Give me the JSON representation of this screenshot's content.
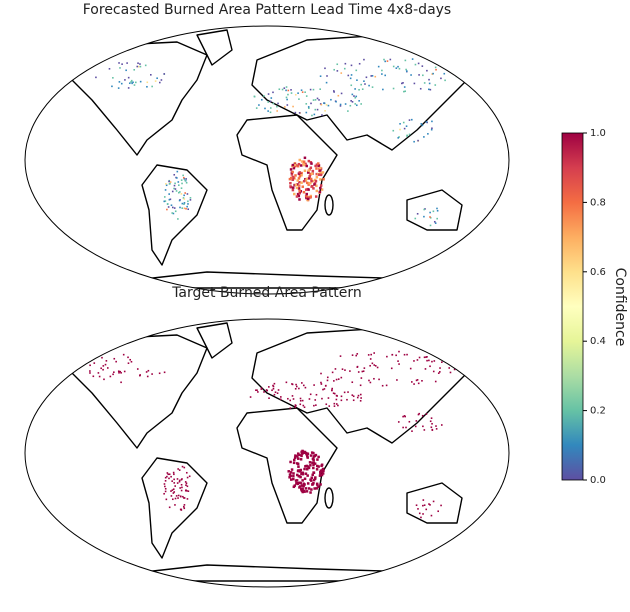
{
  "maps": [
    {
      "title": "Forecasted Burned Area Pattern Lead Time 4x8-days"
    },
    {
      "title": "Target Burned Area Pattern"
    }
  ],
  "colorbar": {
    "label": "Confidence",
    "lim": [
      0,
      1
    ],
    "ticks": [
      {
        "value": 0,
        "label": "0.0"
      },
      0.2,
      0.4,
      0.6,
      0.8,
      {
        "value": 1,
        "label": "1.0"
      }
    ],
    "colors": [
      "#5e4fa2",
      "#3288bd",
      "#66c2a5",
      "#abdda4",
      "#e6f598",
      "#ffffbf",
      "#fee08b",
      "#fdae61",
      "#f46d43",
      "#d53e4f",
      "#9e0142"
    ]
  }
}
